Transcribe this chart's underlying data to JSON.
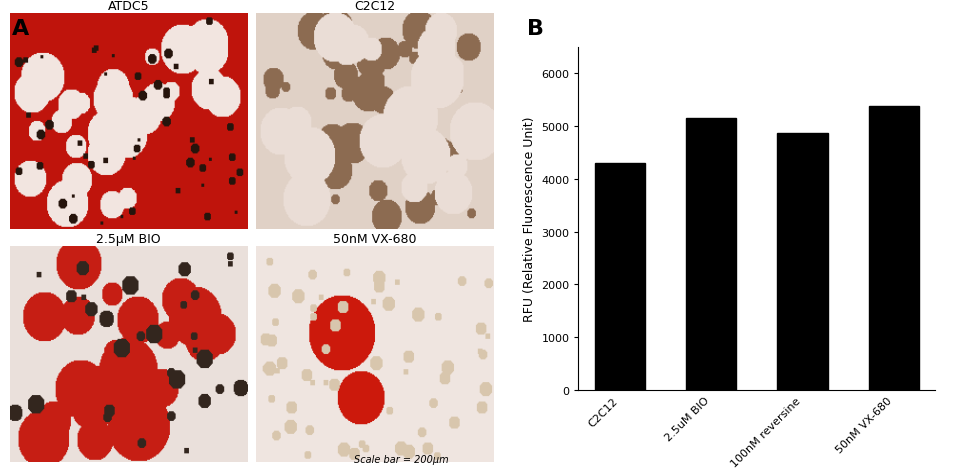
{
  "panel_A_label": "A",
  "panel_B_label": "B",
  "subplot_titles": [
    "ATDC5",
    "C2C12",
    "2.5μM BIO",
    "50nM VX-680"
  ],
  "scale_bar_text": "Scale bar = 200μm",
  "bar_categories": [
    "C2C12",
    "2.5uM BIO",
    "100nM reversine",
    "50nM VX-680"
  ],
  "bar_values": [
    4300,
    5150,
    4870,
    5370
  ],
  "bar_color": "#000000",
  "ylabel": "RFU (Relative Fluorescence Unit)",
  "ylim": [
    0,
    6500
  ],
  "yticks": [
    0,
    1000,
    2000,
    3000,
    4000,
    5000,
    6000
  ],
  "background_color": "#ffffff",
  "panel_label_fontsize": 16,
  "subplot_title_fontsize": 9,
  "bar_label_fontsize": 8,
  "ylabel_fontsize": 9,
  "ytick_fontsize": 8,
  "scale_bar_fontsize": 7
}
